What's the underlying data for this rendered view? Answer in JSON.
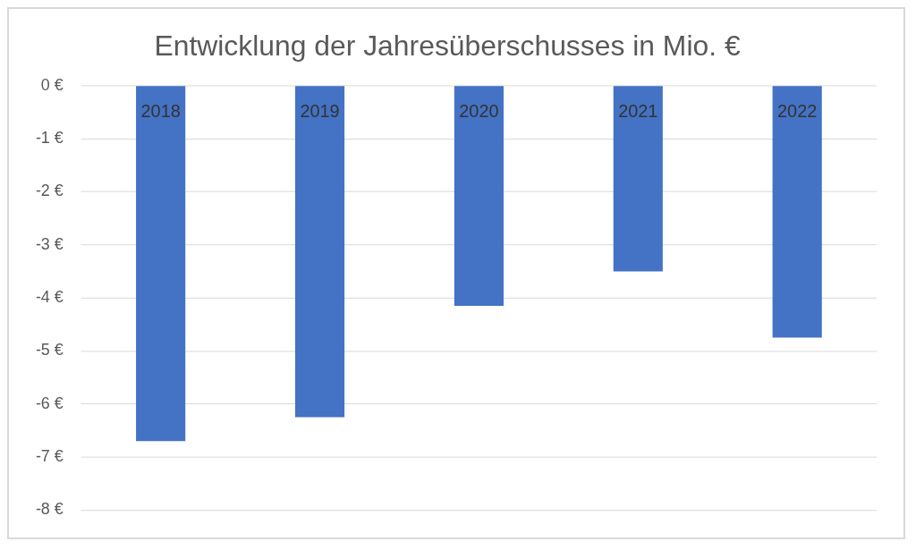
{
  "chart_data": {
    "type": "bar",
    "title": "Entwicklung der Jahresüberschusses in Mio. €",
    "categories": [
      "2018",
      "2019",
      "2020",
      "2021",
      "2022"
    ],
    "values": [
      -6.7,
      -6.25,
      -4.15,
      -3.5,
      -4.75
    ],
    "color": "#4472c4",
    "ylim": [
      -8,
      0
    ],
    "yticks": [
      {
        "value": 0,
        "label": "0 €"
      },
      {
        "value": -1,
        "label": "-1 €"
      },
      {
        "value": -2,
        "label": "-2 €"
      },
      {
        "value": -3,
        "label": "-3 €"
      },
      {
        "value": -4,
        "label": "-4 €"
      },
      {
        "value": -5,
        "label": "-5 €"
      },
      {
        "value": -6,
        "label": "-6 €"
      },
      {
        "value": -7,
        "label": "-7 €"
      },
      {
        "value": -8,
        "label": "-8 €"
      }
    ],
    "grid": "y"
  }
}
